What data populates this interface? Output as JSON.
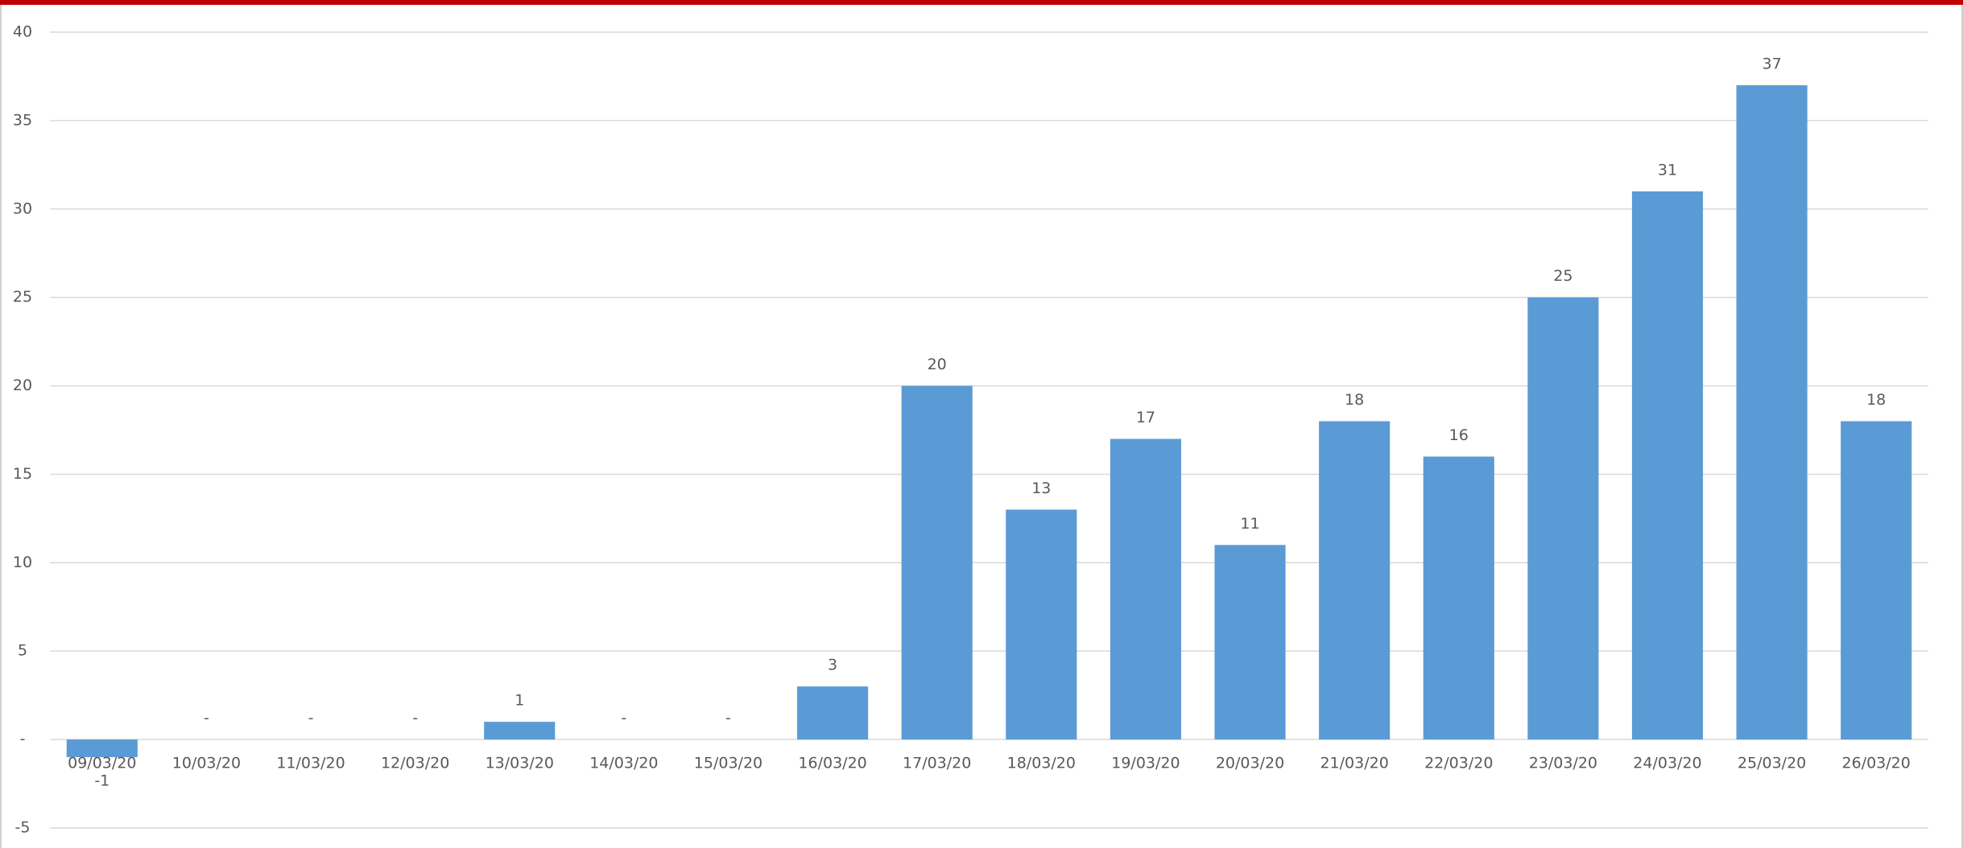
{
  "chart_data": {
    "type": "bar",
    "categories": [
      "09/03/20",
      "10/03/20",
      "11/03/20",
      "12/03/20",
      "13/03/20",
      "14/03/20",
      "15/03/20",
      "16/03/20",
      "17/03/20",
      "18/03/20",
      "19/03/20",
      "20/03/20",
      "21/03/20",
      "22/03/20",
      "23/03/20",
      "24/03/20",
      "25/03/20",
      "26/03/20"
    ],
    "values": [
      -1,
      0,
      0,
      0,
      1,
      0,
      0,
      3,
      20,
      13,
      17,
      11,
      18,
      16,
      25,
      31,
      37,
      18
    ],
    "value_labels": [
      "-1",
      "-",
      "-",
      "-",
      "1",
      "-",
      "-",
      "3",
      "20",
      "13",
      "17",
      "11",
      "18",
      "16",
      "25",
      "31",
      "37",
      "18"
    ],
    "color": "#5b9bd5",
    "ylim": [
      -6,
      40
    ],
    "yticks": [
      -5,
      {
        "value": 0,
        "label": "-"
      },
      5,
      10,
      15,
      20,
      25,
      30,
      35,
      40
    ],
    "grid": true
  }
}
